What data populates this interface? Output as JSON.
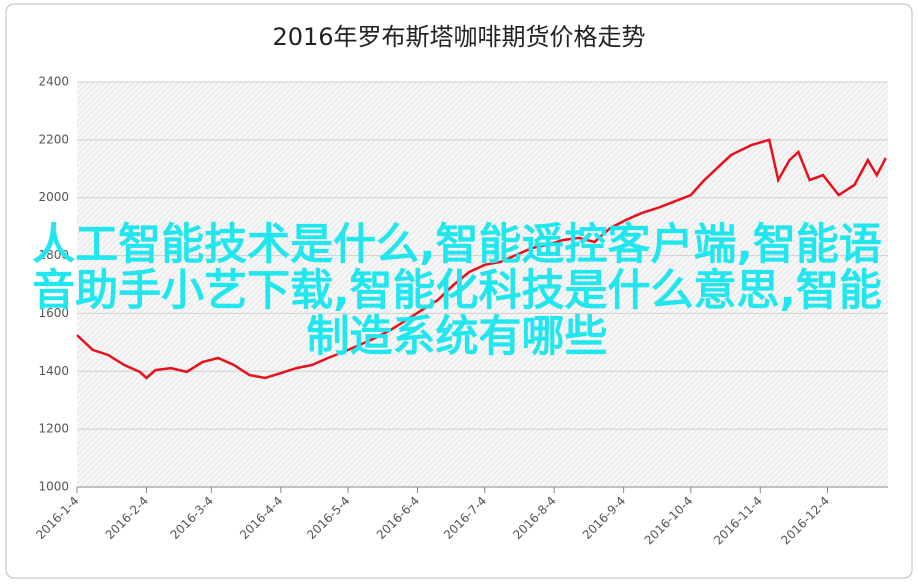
{
  "chart_data": {
    "type": "line",
    "title": "2016年罗布斯塔咖啡期货价格走势",
    "x": [
      "2016-1-4",
      "2016-1-11",
      "2016-1-18",
      "2016-1-25",
      "2016-2-1",
      "2016-2-4",
      "2016-2-8",
      "2016-2-15",
      "2016-2-22",
      "2016-2-29",
      "2016-3-7",
      "2016-3-14",
      "2016-3-21",
      "2016-3-28",
      "2016-4-4",
      "2016-4-11",
      "2016-4-18",
      "2016-4-25",
      "2016-5-2",
      "2016-5-9",
      "2016-5-16",
      "2016-5-23",
      "2016-5-30",
      "2016-6-6",
      "2016-6-13",
      "2016-6-20",
      "2016-6-27",
      "2016-7-4",
      "2016-7-11",
      "2016-7-18",
      "2016-7-25",
      "2016-8-1",
      "2016-8-8",
      "2016-8-15",
      "2016-8-22",
      "2016-8-29",
      "2016-9-5",
      "2016-9-12",
      "2016-9-19",
      "2016-9-26",
      "2016-10-4",
      "2016-10-10",
      "2016-10-22",
      "2016-10-31",
      "2016-11-8",
      "2016-11-12",
      "2016-11-17",
      "2016-11-21",
      "2016-11-26",
      "2016-12-2",
      "2016-12-9",
      "2016-12-16",
      "2016-12-22",
      "2016-12-26",
      "2016-12-30"
    ],
    "values": [
      1525,
      1474,
      1456,
      1422,
      1398,
      1377,
      1404,
      1411,
      1398,
      1432,
      1446,
      1422,
      1387,
      1377,
      1394,
      1411,
      1422,
      1446,
      1467,
      1491,
      1515,
      1543,
      1577,
      1612,
      1646,
      1698,
      1743,
      1768,
      1778,
      1802,
      1826,
      1837,
      1854,
      1861,
      1847,
      1895,
      1923,
      1947,
      1964,
      1985,
      2009,
      2061,
      2148,
      2182,
      2200,
      2061,
      2130,
      2158,
      2061,
      2078,
      2009,
      2044,
      2130,
      2078,
      2137
    ],
    "color": "#e8101a",
    "xlim": [
      "2016-1-4",
      "2016-12-31"
    ],
    "xticks": [
      "2016-1-4",
      "2016-2-4",
      "2016-3-4",
      "2016-4-4",
      "2016-5-4",
      "2016-6-4",
      "2016-7-4",
      "2016-8-4",
      "2016-9-4",
      "2016-10-4",
      "2016-11-4",
      "2016-12-4"
    ],
    "ylim": [
      1000,
      2400
    ],
    "yticks": [
      1000,
      1200,
      1400,
      1600,
      1800,
      2000,
      2200,
      2400
    ],
    "grid": true
  },
  "overlay_text": "人工智能技术是什么,智能遥控客户端,智能语音助手小艺下载,智能化科技是什么意思,智能制造系统有哪些"
}
